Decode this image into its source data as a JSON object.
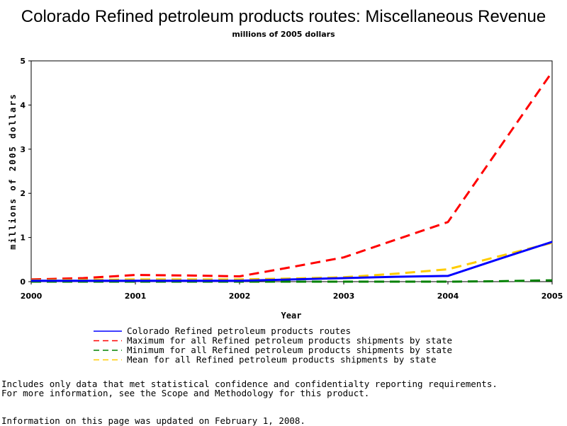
{
  "chart_data": {
    "type": "line",
    "title": "Colorado Refined petroleum products routes: Miscellaneous Revenue",
    "subtitle": "millions of 2005 dollars",
    "xlabel": "Year",
    "ylabel": "millions of 2005 dollars",
    "x": [
      2000,
      2000.5,
      2001,
      2001.5,
      2002,
      2002.5,
      2003,
      2003.5,
      2004,
      2004.5,
      2005
    ],
    "xlim": [
      2000,
      2005
    ],
    "ylim": [
      0,
      5
    ],
    "xticks": [
      "2000",
      "2001",
      "2002",
      "2003",
      "2004",
      "2005"
    ],
    "yticks": [
      "0",
      "1",
      "2",
      "3",
      "4",
      "5"
    ],
    "grid": false,
    "legend_position": "bottom",
    "series": [
      {
        "name": "Colorado Refined petroleum products routes",
        "color": "#0000ff",
        "dash": "solid",
        "values": [
          0.02,
          0.02,
          0.02,
          0.02,
          0.02,
          0.05,
          0.08,
          0.11,
          0.13,
          0.52,
          0.9
        ]
      },
      {
        "name": "Maximum for all Refined petroleum products shipments by state",
        "color": "#ff0000",
        "dash": "dashed",
        "values": [
          0.05,
          0.08,
          0.15,
          0.14,
          0.12,
          0.33,
          0.55,
          0.95,
          1.35,
          3.05,
          4.75
        ]
      },
      {
        "name": "Minimum for all Refined petroleum products shipments by state",
        "color": "#008000",
        "dash": "dashed",
        "values": [
          0.0,
          0.0,
          0.0,
          0.0,
          0.0,
          0.0,
          0.0,
          0.0,
          0.0,
          0.01,
          0.03
        ]
      },
      {
        "name": "Mean for all Refined petroleum products shipments by state",
        "color": "#ffcc00",
        "dash": "dashed",
        "values": [
          0.03,
          0.04,
          0.05,
          0.05,
          0.05,
          0.07,
          0.1,
          0.18,
          0.28,
          0.58,
          0.88
        ]
      }
    ]
  },
  "footnotes": {
    "line1": "Includes only data that met statistical confidence and confidentialty reporting requirements.",
    "line2": "For more information, see the Scope and Methodology for this product.",
    "updated": "Information on this page was updated on February 1, 2008."
  }
}
